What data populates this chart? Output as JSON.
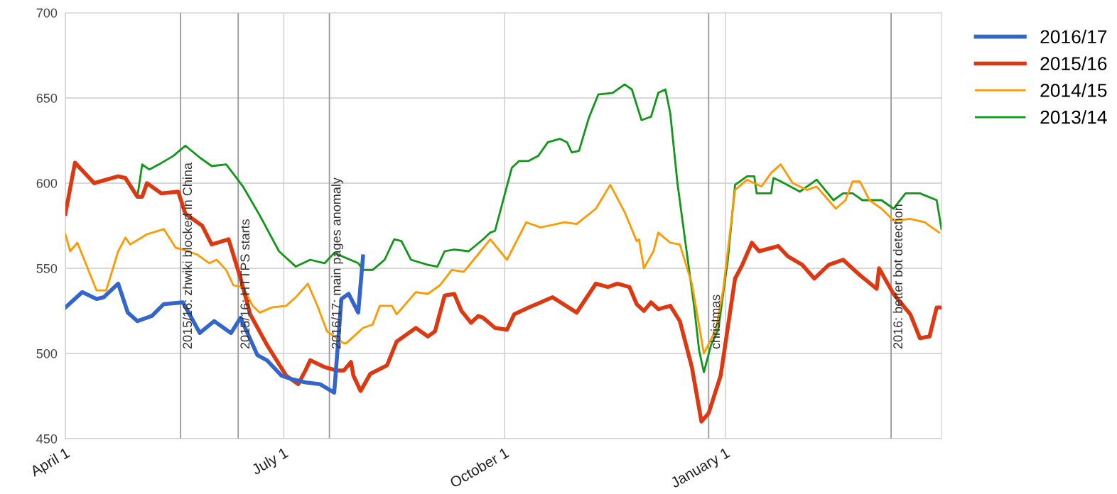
{
  "chart_data": {
    "type": "line",
    "xlim": [
      "2015-04-01",
      "2016-03-31"
    ],
    "ylim": [
      450,
      700
    ],
    "xticks": [
      {
        "value": "2015-04-01",
        "label": "April 1"
      },
      {
        "value": "2015-07-01",
        "label": "July 1"
      },
      {
        "value": "2015-10-01",
        "label": "October 1"
      },
      {
        "value": "2016-01-01",
        "label": "January 1"
      }
    ],
    "yticks": [
      450,
      500,
      550,
      600,
      650,
      700
    ],
    "grid": true,
    "legend": "top right",
    "series": [
      {
        "name": "2016/17",
        "color": "#3366cc",
        "x": [
          "2015-04-01",
          "2015-04-08",
          "2015-04-14",
          "2015-04-17",
          "2015-04-23",
          "2015-04-27",
          "2015-05-01",
          "2015-05-07",
          "2015-05-12",
          "2015-05-20",
          "2015-05-27",
          "2015-06-02",
          "2015-06-09",
          "2015-06-13",
          "2015-06-20",
          "2015-06-24",
          "2015-06-30",
          "2015-07-04",
          "2015-07-10",
          "2015-07-16",
          "2015-07-22",
          "2015-07-25",
          "2015-07-28",
          "2015-08-01",
          "2015-08-03"
        ],
        "values": [
          527,
          536,
          532,
          533,
          541,
          524,
          519,
          522,
          529,
          530,
          512,
          519,
          512,
          521,
          499,
          496,
          487,
          485,
          483,
          482,
          477,
          532,
          535,
          524,
          557
        ]
      },
      {
        "name": "2015/16",
        "color": "#dc3912",
        "x": [
          "2015-04-01",
          "2015-04-03",
          "2015-04-05",
          "2015-04-13",
          "2015-04-23",
          "2015-04-26",
          "2015-05-01",
          "2015-05-03",
          "2015-05-05",
          "2015-05-11",
          "2015-05-18",
          "2015-05-21",
          "2015-05-28",
          "2015-06-01",
          "2015-06-08",
          "2015-06-13",
          "2015-06-17",
          "2015-06-24",
          "2015-07-02",
          "2015-07-07",
          "2015-07-10",
          "2015-07-12",
          "2015-07-18",
          "2015-07-23",
          "2015-07-26",
          "2015-07-29",
          "2015-07-30",
          "2015-08-02",
          "2015-08-06",
          "2015-08-13",
          "2015-08-17",
          "2015-08-25",
          "2015-08-30",
          "2015-09-02",
          "2015-09-06",
          "2015-09-10",
          "2015-09-13",
          "2015-09-17",
          "2015-09-20",
          "2015-09-22",
          "2015-09-27",
          "2015-10-02",
          "2015-10-05",
          "2015-10-11",
          "2015-10-21",
          "2015-10-31",
          "2015-11-08",
          "2015-11-13",
          "2015-11-17",
          "2015-11-22",
          "2015-11-25",
          "2015-11-28",
          "2015-12-01",
          "2015-12-04",
          "2015-12-09",
          "2015-12-13",
          "2015-12-18",
          "2015-12-22",
          "2015-12-25",
          "2015-12-30",
          "2016-01-05",
          "2016-01-08",
          "2016-01-12",
          "2016-01-15",
          "2016-01-23",
          "2016-01-27",
          "2016-02-02",
          "2016-02-07",
          "2016-02-13",
          "2016-02-19",
          "2016-02-26",
          "2016-03-04",
          "2016-03-05",
          "2016-03-11",
          "2016-03-18",
          "2016-03-22",
          "2016-03-26",
          "2016-03-29",
          "2016-03-31"
        ],
        "values": [
          582,
          597,
          612,
          600,
          604,
          603,
          592,
          592,
          600,
          594,
          595,
          582,
          575,
          564,
          567,
          544,
          523,
          505,
          487,
          482,
          490,
          496,
          492,
          490,
          490,
          495,
          487,
          478,
          488,
          493,
          507,
          515,
          510,
          513,
          534,
          535,
          525,
          518,
          522,
          521,
          515,
          514,
          523,
          527,
          533,
          524,
          541,
          539,
          541,
          539,
          529,
          525,
          530,
          526,
          528,
          519,
          492,
          460,
          465,
          487,
          544,
          552,
          565,
          560,
          563,
          557,
          552,
          544,
          552,
          555,
          546,
          538,
          550,
          535,
          523,
          509,
          510,
          527,
          527
        ]
      },
      {
        "name": "2014/15",
        "color": "#ff9900",
        "x": [
          "2015-04-01",
          "2015-04-03",
          "2015-04-06",
          "2015-04-14",
          "2015-04-18",
          "2015-04-23",
          "2015-04-26",
          "2015-04-28",
          "2015-05-05",
          "2015-05-12",
          "2015-05-17",
          "2015-05-20",
          "2015-05-26",
          "2015-05-31",
          "2015-06-03",
          "2015-06-07",
          "2015-06-10",
          "2015-06-14",
          "2015-06-18",
          "2015-06-21",
          "2015-06-26",
          "2015-07-02",
          "2015-07-06",
          "2015-07-11",
          "2015-07-15",
          "2015-07-19",
          "2015-07-26",
          "2015-07-27",
          "2015-08-03",
          "2015-08-07",
          "2015-08-10",
          "2015-08-15",
          "2015-08-17",
          "2015-08-25",
          "2015-08-30",
          "2015-09-04",
          "2015-09-09",
          "2015-09-14",
          "2015-09-21",
          "2015-09-25",
          "2015-10-02",
          "2015-10-10",
          "2015-10-16",
          "2015-10-26",
          "2015-10-31",
          "2015-11-08",
          "2015-11-14",
          "2015-11-20",
          "2015-11-25",
          "2015-11-26",
          "2015-11-28",
          "2015-12-02",
          "2015-12-04",
          "2015-12-09",
          "2015-12-13",
          "2015-12-18",
          "2015-12-23",
          "2015-12-28",
          "2015-12-31",
          "2016-01-05",
          "2016-01-10",
          "2016-01-16",
          "2016-01-20",
          "2016-01-24",
          "2016-01-29",
          "2016-02-04",
          "2016-02-08",
          "2016-02-16",
          "2016-02-20",
          "2016-02-23",
          "2016-02-26",
          "2016-03-01",
          "2016-03-06",
          "2016-03-11",
          "2016-03-18",
          "2016-03-24",
          "2016-03-30"
        ],
        "values": [
          570,
          560,
          565,
          537,
          537,
          560,
          568,
          564,
          570,
          573,
          562,
          561,
          558,
          553,
          555,
          549,
          540,
          539,
          528,
          524,
          527,
          528,
          533,
          541,
          528,
          513,
          506,
          506,
          515,
          517,
          528,
          528,
          523,
          536,
          535,
          540,
          549,
          548,
          560,
          567,
          555,
          577,
          574,
          577,
          576,
          585,
          599,
          583,
          566,
          567,
          550,
          560,
          571,
          565,
          564,
          541,
          500,
          514,
          537,
          596,
          602,
          598,
          606,
          611,
          600,
          596,
          598,
          585,
          590,
          601,
          601,
          590,
          585,
          578,
          579,
          577,
          571
        ]
      },
      {
        "name": "2013/14",
        "color": "#109618",
        "x": [
          "2015-05-01",
          "2015-05-03",
          "2015-05-06",
          "2015-05-10",
          "2015-05-16",
          "2015-05-21",
          "2015-05-27",
          "2015-06-01",
          "2015-06-07",
          "2015-06-14",
          "2015-06-21",
          "2015-06-29",
          "2015-07-06",
          "2015-07-12",
          "2015-07-18",
          "2015-07-22",
          "2015-08-01",
          "2015-08-03",
          "2015-08-07",
          "2015-08-12",
          "2015-08-16",
          "2015-08-19",
          "2015-08-23",
          "2015-08-30",
          "2015-09-03",
          "2015-09-06",
          "2015-09-10",
          "2015-09-16",
          "2015-09-22",
          "2015-09-25",
          "2015-09-27",
          "2015-10-04",
          "2015-10-07",
          "2015-10-11",
          "2015-10-15",
          "2015-10-19",
          "2015-10-24",
          "2015-10-27",
          "2015-10-29",
          "2015-11-01",
          "2015-11-05",
          "2015-11-09",
          "2015-11-15",
          "2015-11-20",
          "2015-11-23",
          "2015-11-27",
          "2015-12-01",
          "2015-12-04",
          "2015-12-07",
          "2015-12-09",
          "2015-12-12",
          "2015-12-16",
          "2015-12-19",
          "2015-12-21",
          "2015-12-23",
          "2015-12-26",
          "2015-12-29",
          "2016-01-02",
          "2016-01-05",
          "2016-01-10",
          "2016-01-13",
          "2016-01-14",
          "2016-01-20",
          "2016-01-21",
          "2016-01-24",
          "2016-02-01",
          "2016-02-08",
          "2016-02-15",
          "2016-02-19",
          "2016-02-23",
          "2016-02-27",
          "2016-03-06",
          "2016-03-11",
          "2016-03-16",
          "2016-03-22",
          "2016-03-29",
          "2016-03-31"
        ],
        "values": [
          592,
          611,
          608,
          611,
          616,
          622,
          615,
          610,
          611,
          598,
          581,
          560,
          551,
          555,
          553,
          559,
          553,
          549,
          549,
          555,
          567,
          566,
          555,
          552,
          551,
          560,
          561,
          560,
          567,
          571,
          572,
          609,
          613,
          613,
          616,
          624,
          626,
          624,
          618,
          619,
          638,
          652,
          653,
          658,
          655,
          637,
          639,
          653,
          655,
          641,
          600,
          558,
          527,
          502,
          489,
          505,
          514,
          555,
          599,
          604,
          604,
          594,
          594,
          603,
          601,
          595,
          602,
          590,
          594,
          594,
          590,
          590,
          585,
          594,
          594,
          590,
          573
        ]
      }
    ],
    "ref_lines": [
      {
        "axis": "x",
        "value": "2015-05-19",
        "label": "2015/16: zhwiki blocked in China",
        "color": "#999999"
      },
      {
        "axis": "x",
        "value": "2015-06-12",
        "label": "2015/16: HTTPS starts",
        "color": "#999999"
      },
      {
        "axis": "x",
        "value": "2015-07-20",
        "label": "2016/17: main pages anomaly",
        "color": "#999999"
      },
      {
        "axis": "x",
        "value": "2015-12-25",
        "label": "christmas",
        "color": "#999999"
      },
      {
        "axis": "x",
        "value": "2016-03-10",
        "label": "2016: better bot detection",
        "color": "#999999"
      }
    ]
  }
}
